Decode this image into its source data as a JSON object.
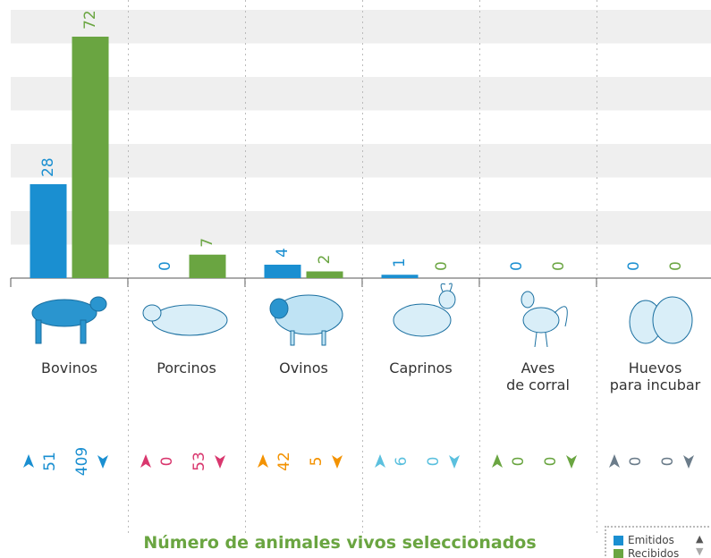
{
  "chart_data": {
    "type": "bar",
    "title": "Número de animales vivos seleccionados",
    "categories": [
      "Bovinos",
      "Porcinos",
      "Ovinos",
      "Caprinos",
      "Aves\nde corral",
      "Huevos\npara incubar"
    ],
    "series": [
      {
        "name": "Emitidos",
        "color": "#1a8fd1",
        "values": [
          28,
          0,
          4,
          1,
          0,
          0
        ]
      },
      {
        "name": "Recibidos",
        "color": "#6aa541",
        "values": [
          72,
          7,
          2,
          0,
          0,
          0
        ]
      }
    ],
    "ylim": [
      0,
      80
    ],
    "yticks": [
      0,
      10,
      20,
      30,
      40,
      50,
      60,
      70,
      80
    ],
    "grid": true,
    "flows": [
      {
        "up": 51,
        "down": 409,
        "color": "#1a8fd1"
      },
      {
        "up": 0,
        "down": 53,
        "color": "#d9376e"
      },
      {
        "up": 42,
        "down": 5,
        "color": "#f39200"
      },
      {
        "up": 6,
        "down": 0,
        "color": "#5bc0de"
      },
      {
        "up": 0,
        "down": 0,
        "color": "#6aa541"
      },
      {
        "up": 0,
        "down": 0,
        "color": "#6b7c8a"
      }
    ]
  }
}
